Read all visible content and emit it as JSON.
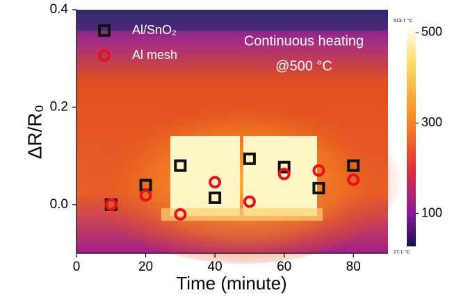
{
  "chart_data": {
    "type": "scatter",
    "xlabel": "Time (minute)",
    "ylabel": "ΔR/R₀",
    "annotation": [
      "Continuous heating",
      "@500 °C"
    ],
    "xlim": [
      0,
      90
    ],
    "xticks": [
      0,
      20,
      40,
      60,
      80
    ],
    "ylim": [
      -0.1,
      0.4
    ],
    "yticks": [
      {
        "value": 0,
        "label": "0.0"
      },
      {
        "value": 0.2,
        "label": "0.2"
      },
      {
        "value": 0.4,
        "label": "0.4"
      }
    ],
    "series": [
      {
        "name": "Al/SnO₂",
        "color": "#111111",
        "marker": "square",
        "x": [
          10,
          20,
          30,
          40,
          50,
          60,
          70,
          80
        ],
        "values": [
          0,
          0.04,
          0.08,
          0.014,
          0.094,
          0.077,
          0.034,
          0.08
        ]
      },
      {
        "name": "Al mesh",
        "color": "#e8101a",
        "marker": "circle",
        "x": [
          10,
          20,
          30,
          40,
          50,
          60,
          70,
          80
        ],
        "values": [
          0,
          0.019,
          -0.02,
          0.046,
          0.006,
          0.063,
          0.07,
          0.051
        ]
      }
    ],
    "colorbar": {
      "range": [
        {
          "value": 27.1,
          "label": "27.1 °C"
        },
        {
          "value": 513.7,
          "label": "513.7 °C"
        }
      ],
      "ticks": [
        500,
        300,
        100
      ]
    }
  }
}
